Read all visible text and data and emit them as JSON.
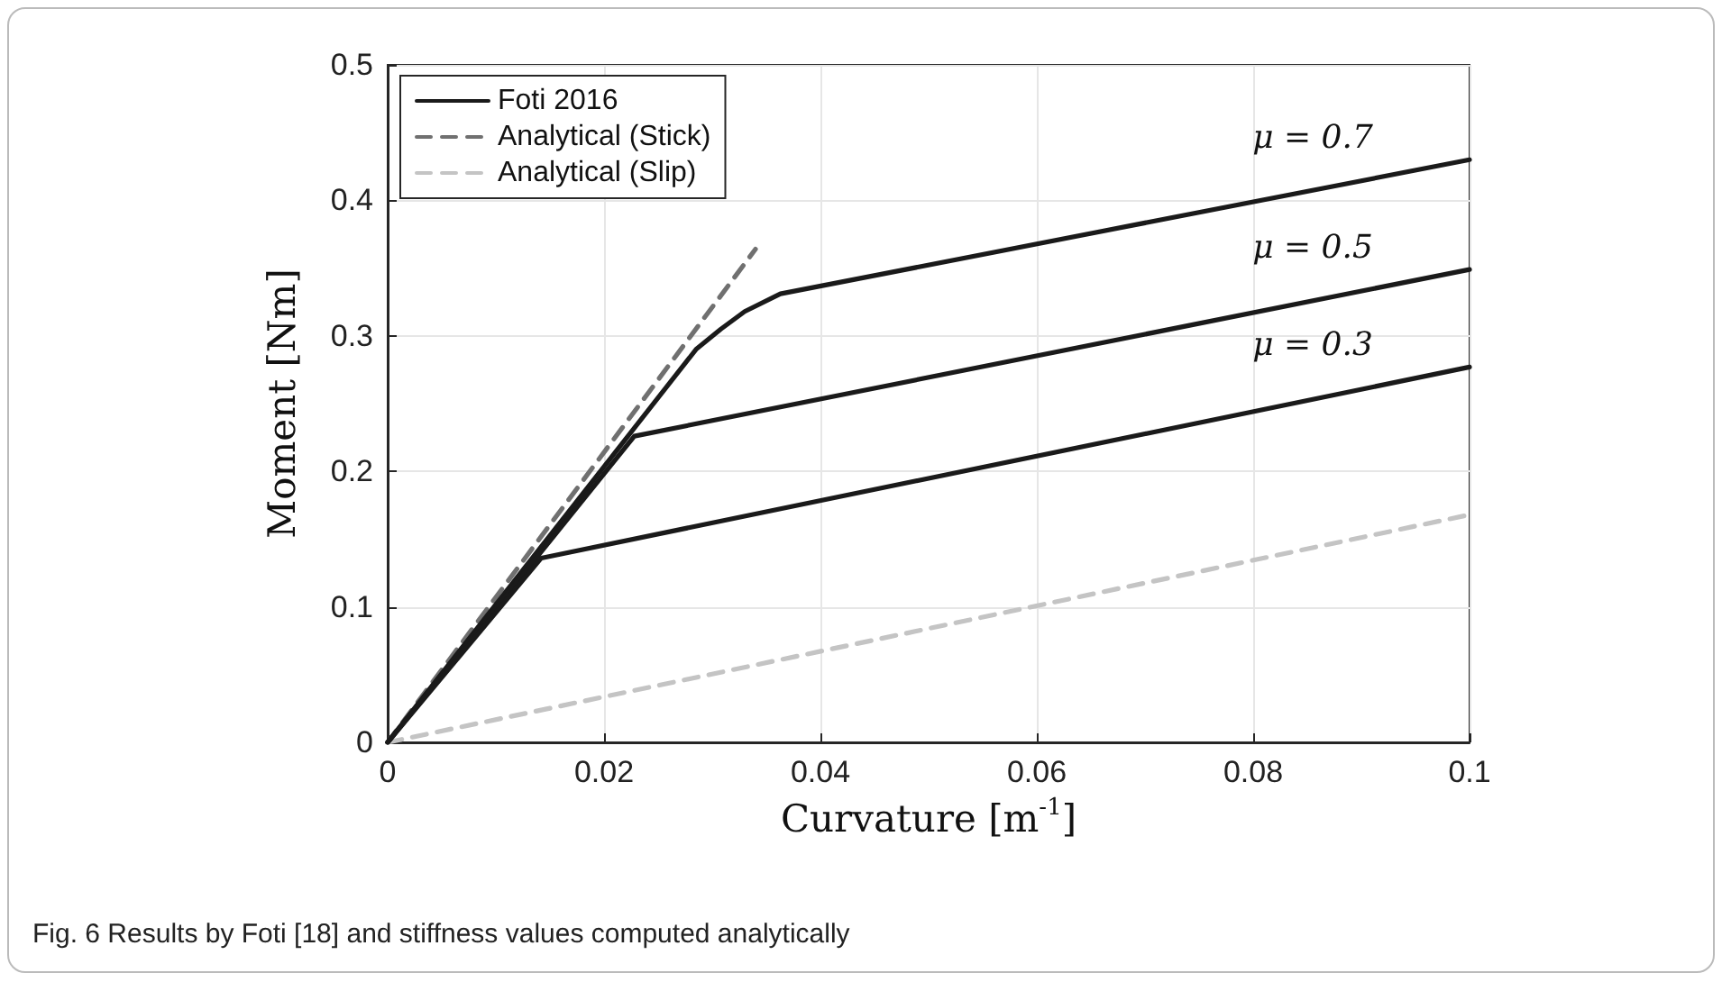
{
  "chart_data": {
    "type": "line",
    "xlabel": "Curvature [m$^{-1}$]",
    "ylabel": "Moment [Nm]",
    "xlim": [
      0,
      0.1
    ],
    "xticks": [
      0,
      0.02,
      0.04,
      0.06,
      0.08,
      0.1
    ],
    "ylim": [
      0,
      0.5
    ],
    "yticks": [
      0,
      0.1,
      0.2,
      0.3,
      0.4,
      0.5
    ],
    "grid": true,
    "legend": "top left",
    "marker": "none",
    "series": [
      {
        "name": "Foti 2016",
        "color": "#1a1a1a",
        "line_style": "solid",
        "x": [
          0,
          0.0142,
          0.1
        ],
        "values": [
          0,
          0.136,
          0.277
        ]
      },
      {
        "color": "#1a1a1a",
        "line_style": "solid",
        "x": [
          0,
          0.0228,
          0.1
        ],
        "values": [
          0,
          0.226,
          0.349
        ]
      },
      {
        "color": "#1a1a1a",
        "line_style": "solid",
        "x": [
          0,
          0.0285,
          0.0308,
          0.033,
          0.0363,
          0.1
        ],
        "values": [
          0,
          0.29,
          0.305,
          0.318,
          0.331,
          0.43
        ]
      },
      {
        "name": "Analytical (Stick)",
        "color": "#707070",
        "line_style": "dashed",
        "x": [
          0,
          0.034
        ],
        "values": [
          0,
          0.364
        ]
      },
      {
        "name": "Analytical (Slip)",
        "color": "#c4c4c4",
        "line_style": "dashed",
        "x": [
          0,
          0.1
        ],
        "values": [
          0,
          0.168
        ]
      }
    ],
    "annotations": [
      "μ = 0.7",
      "μ = 0.5",
      "μ = 0.3",
      "Fig. 6 Results by Foti [18] and stiffness values computed analytically"
    ]
  }
}
